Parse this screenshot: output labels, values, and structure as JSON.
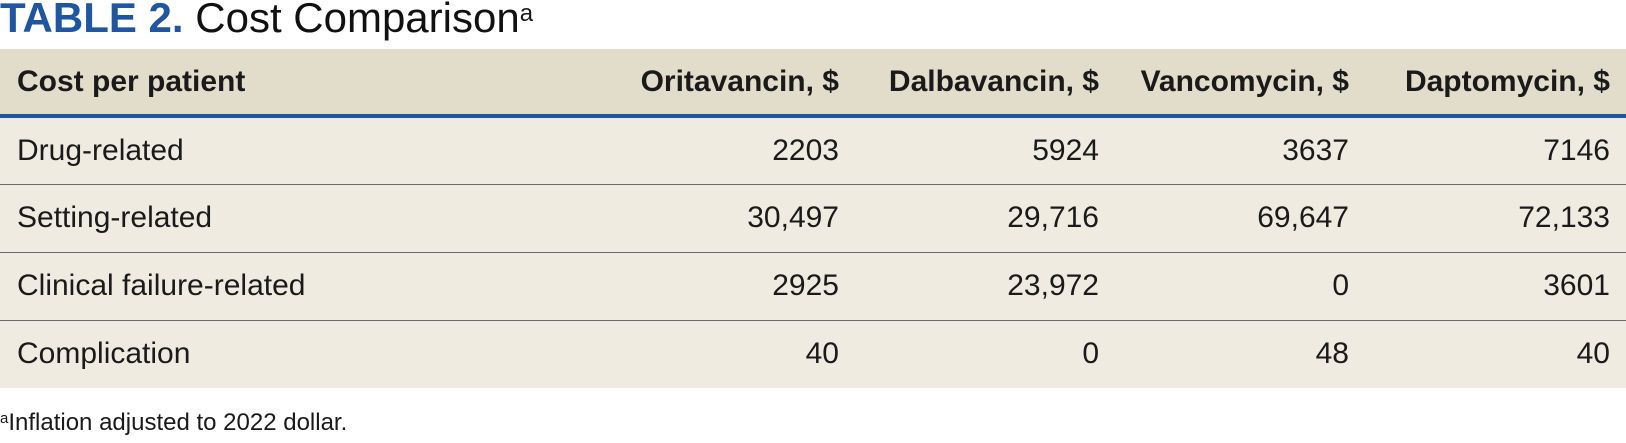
{
  "title": {
    "label": "TABLE 2.",
    "text": "Cost Comparison",
    "superscript": "a"
  },
  "table": {
    "headers": [
      "Cost per patient",
      "Oritavancin, $",
      "Dalbavancin, $",
      "Vancomycin, $",
      "Daptomycin, $"
    ],
    "rows": [
      [
        "Drug-related",
        "2203",
        "5924",
        "3637",
        "7146"
      ],
      [
        "Setting-related",
        "30,497",
        "29,716",
        "69,647",
        "72,133"
      ],
      [
        "Clinical failure-related",
        "2925",
        "23,972",
        "0",
        "3601"
      ],
      [
        "Complication",
        "40",
        "0",
        "48",
        "40"
      ]
    ]
  },
  "footnote": {
    "marker": "a",
    "text": "Inflation adjusted to 2022 dollar."
  },
  "colors": {
    "accent": "#1f56a3",
    "header_bg": "#e2dccb",
    "row_bg": "#efebe1"
  }
}
